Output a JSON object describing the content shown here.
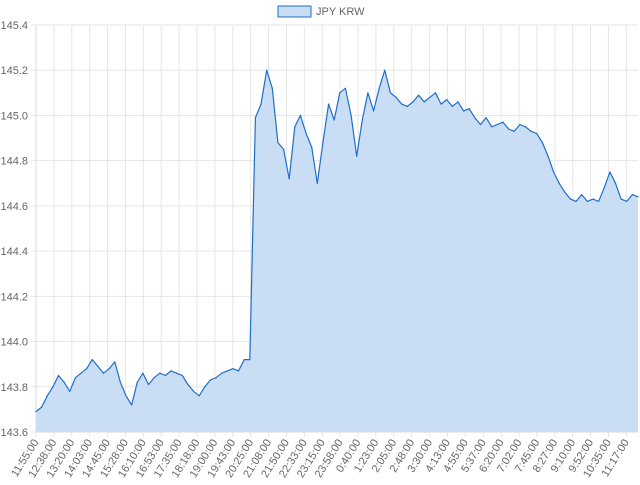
{
  "chart_data": {
    "type": "area",
    "legend": {
      "label": "JPY KRW",
      "position": "top-center"
    },
    "ylim": [
      143.6,
      145.4
    ],
    "y_ticks": [
      "145.4",
      "145.2",
      "145.0",
      "144.8",
      "144.6",
      "144.4",
      "144.2",
      "144.0",
      "143.8",
      "143.6"
    ],
    "x_tick_labels": [
      "11:55:00",
      "12:38:00",
      "13:20:00",
      "14:03:00",
      "14:45:00",
      "15:28:00",
      "16:10:00",
      "16:53:00",
      "17:35:00",
      "18:18:00",
      "19:00:00",
      "19:43:00",
      "20:25:00",
      "21:08:00",
      "21:50:00",
      "22:33:00",
      "23:15:00",
      "23:58:00",
      "0:40:00",
      "1:23:00",
      "2:05:00",
      "2:48:00",
      "3:30:00",
      "4:13:00",
      "4:55:00",
      "5:37:00",
      "6:20:00",
      "7:02:00",
      "7:45:00",
      "8:27:00",
      "9:10:00",
      "9:52:00",
      "10:35:00",
      "11:17:00"
    ],
    "grid": true,
    "colors": {
      "line": "#1f6fc8",
      "fill": "#c9def5",
      "grid": "#e6e6e6",
      "text": "#666666"
    },
    "series": [
      {
        "name": "JPY KRW",
        "x": [
          "11:55",
          "12:10",
          "12:25",
          "12:38",
          "12:55",
          "13:10",
          "13:20",
          "13:40",
          "14:03",
          "14:20",
          "14:35",
          "14:45",
          "15:05",
          "15:20",
          "15:28",
          "15:45",
          "16:00",
          "16:10",
          "16:25",
          "16:40",
          "16:53",
          "17:10",
          "17:25",
          "17:35",
          "17:55",
          "18:10",
          "18:18",
          "18:35",
          "18:50",
          "19:00",
          "19:15",
          "19:30",
          "19:43",
          "19:55",
          "20:10",
          "20:25",
          "20:40",
          "20:55",
          "21:08",
          "21:20",
          "21:30",
          "21:35",
          "21:38",
          "21:42",
          "21:50",
          "22:00",
          "22:10",
          "22:20",
          "22:33",
          "22:45",
          "22:55",
          "23:05",
          "23:15",
          "23:25",
          "23:35",
          "23:45",
          "23:58",
          "0:10",
          "0:25",
          "0:40",
          "0:50",
          "1:00",
          "1:10",
          "1:23",
          "1:35",
          "1:50",
          "2:05",
          "2:20",
          "2:35",
          "2:48",
          "3:00",
          "3:15",
          "3:30",
          "3:45",
          "4:00",
          "4:13",
          "4:30",
          "4:45",
          "4:55",
          "5:10",
          "5:25",
          "5:37",
          "5:50",
          "6:05",
          "6:20",
          "6:35",
          "6:50",
          "7:02",
          "7:15",
          "7:30",
          "7:45",
          "8:00",
          "8:15",
          "8:27",
          "8:40",
          "8:55",
          "9:10",
          "9:25",
          "9:40",
          "9:52",
          "10:05",
          "10:20",
          "10:35",
          "10:50",
          "11:05",
          "11:17",
          "11:30",
          "11:40"
        ],
        "values": [
          143.69,
          143.71,
          143.76,
          143.8,
          143.85,
          143.82,
          143.78,
          143.84,
          143.86,
          143.88,
          143.92,
          143.89,
          143.86,
          143.88,
          143.91,
          143.82,
          143.76,
          143.72,
          143.82,
          143.86,
          143.81,
          143.84,
          143.86,
          143.85,
          143.87,
          143.86,
          143.85,
          143.81,
          143.78,
          143.76,
          143.8,
          143.83,
          143.84,
          143.86,
          143.87,
          143.88,
          143.87,
          143.92,
          143.92,
          144.99,
          145.05,
          145.2,
          145.12,
          144.88,
          144.85,
          144.72,
          144.95,
          145.0,
          144.92,
          144.86,
          144.7,
          144.88,
          145.05,
          144.98,
          145.1,
          145.12,
          145.0,
          144.82,
          144.98,
          145.1,
          145.02,
          145.12,
          145.2,
          145.1,
          145.08,
          145.05,
          145.04,
          145.06,
          145.09,
          145.06,
          145.08,
          145.1,
          145.05,
          145.07,
          145.04,
          145.06,
          145.02,
          145.03,
          144.99,
          144.96,
          144.99,
          144.95,
          144.96,
          144.97,
          144.94,
          144.93,
          144.96,
          144.95,
          144.93,
          144.92,
          144.88,
          144.82,
          144.75,
          144.7,
          144.66,
          144.63,
          144.62,
          144.65,
          144.62,
          144.63,
          144.62,
          144.68,
          144.75,
          144.7,
          144.63,
          144.62,
          144.65,
          144.64
        ]
      }
    ]
  }
}
